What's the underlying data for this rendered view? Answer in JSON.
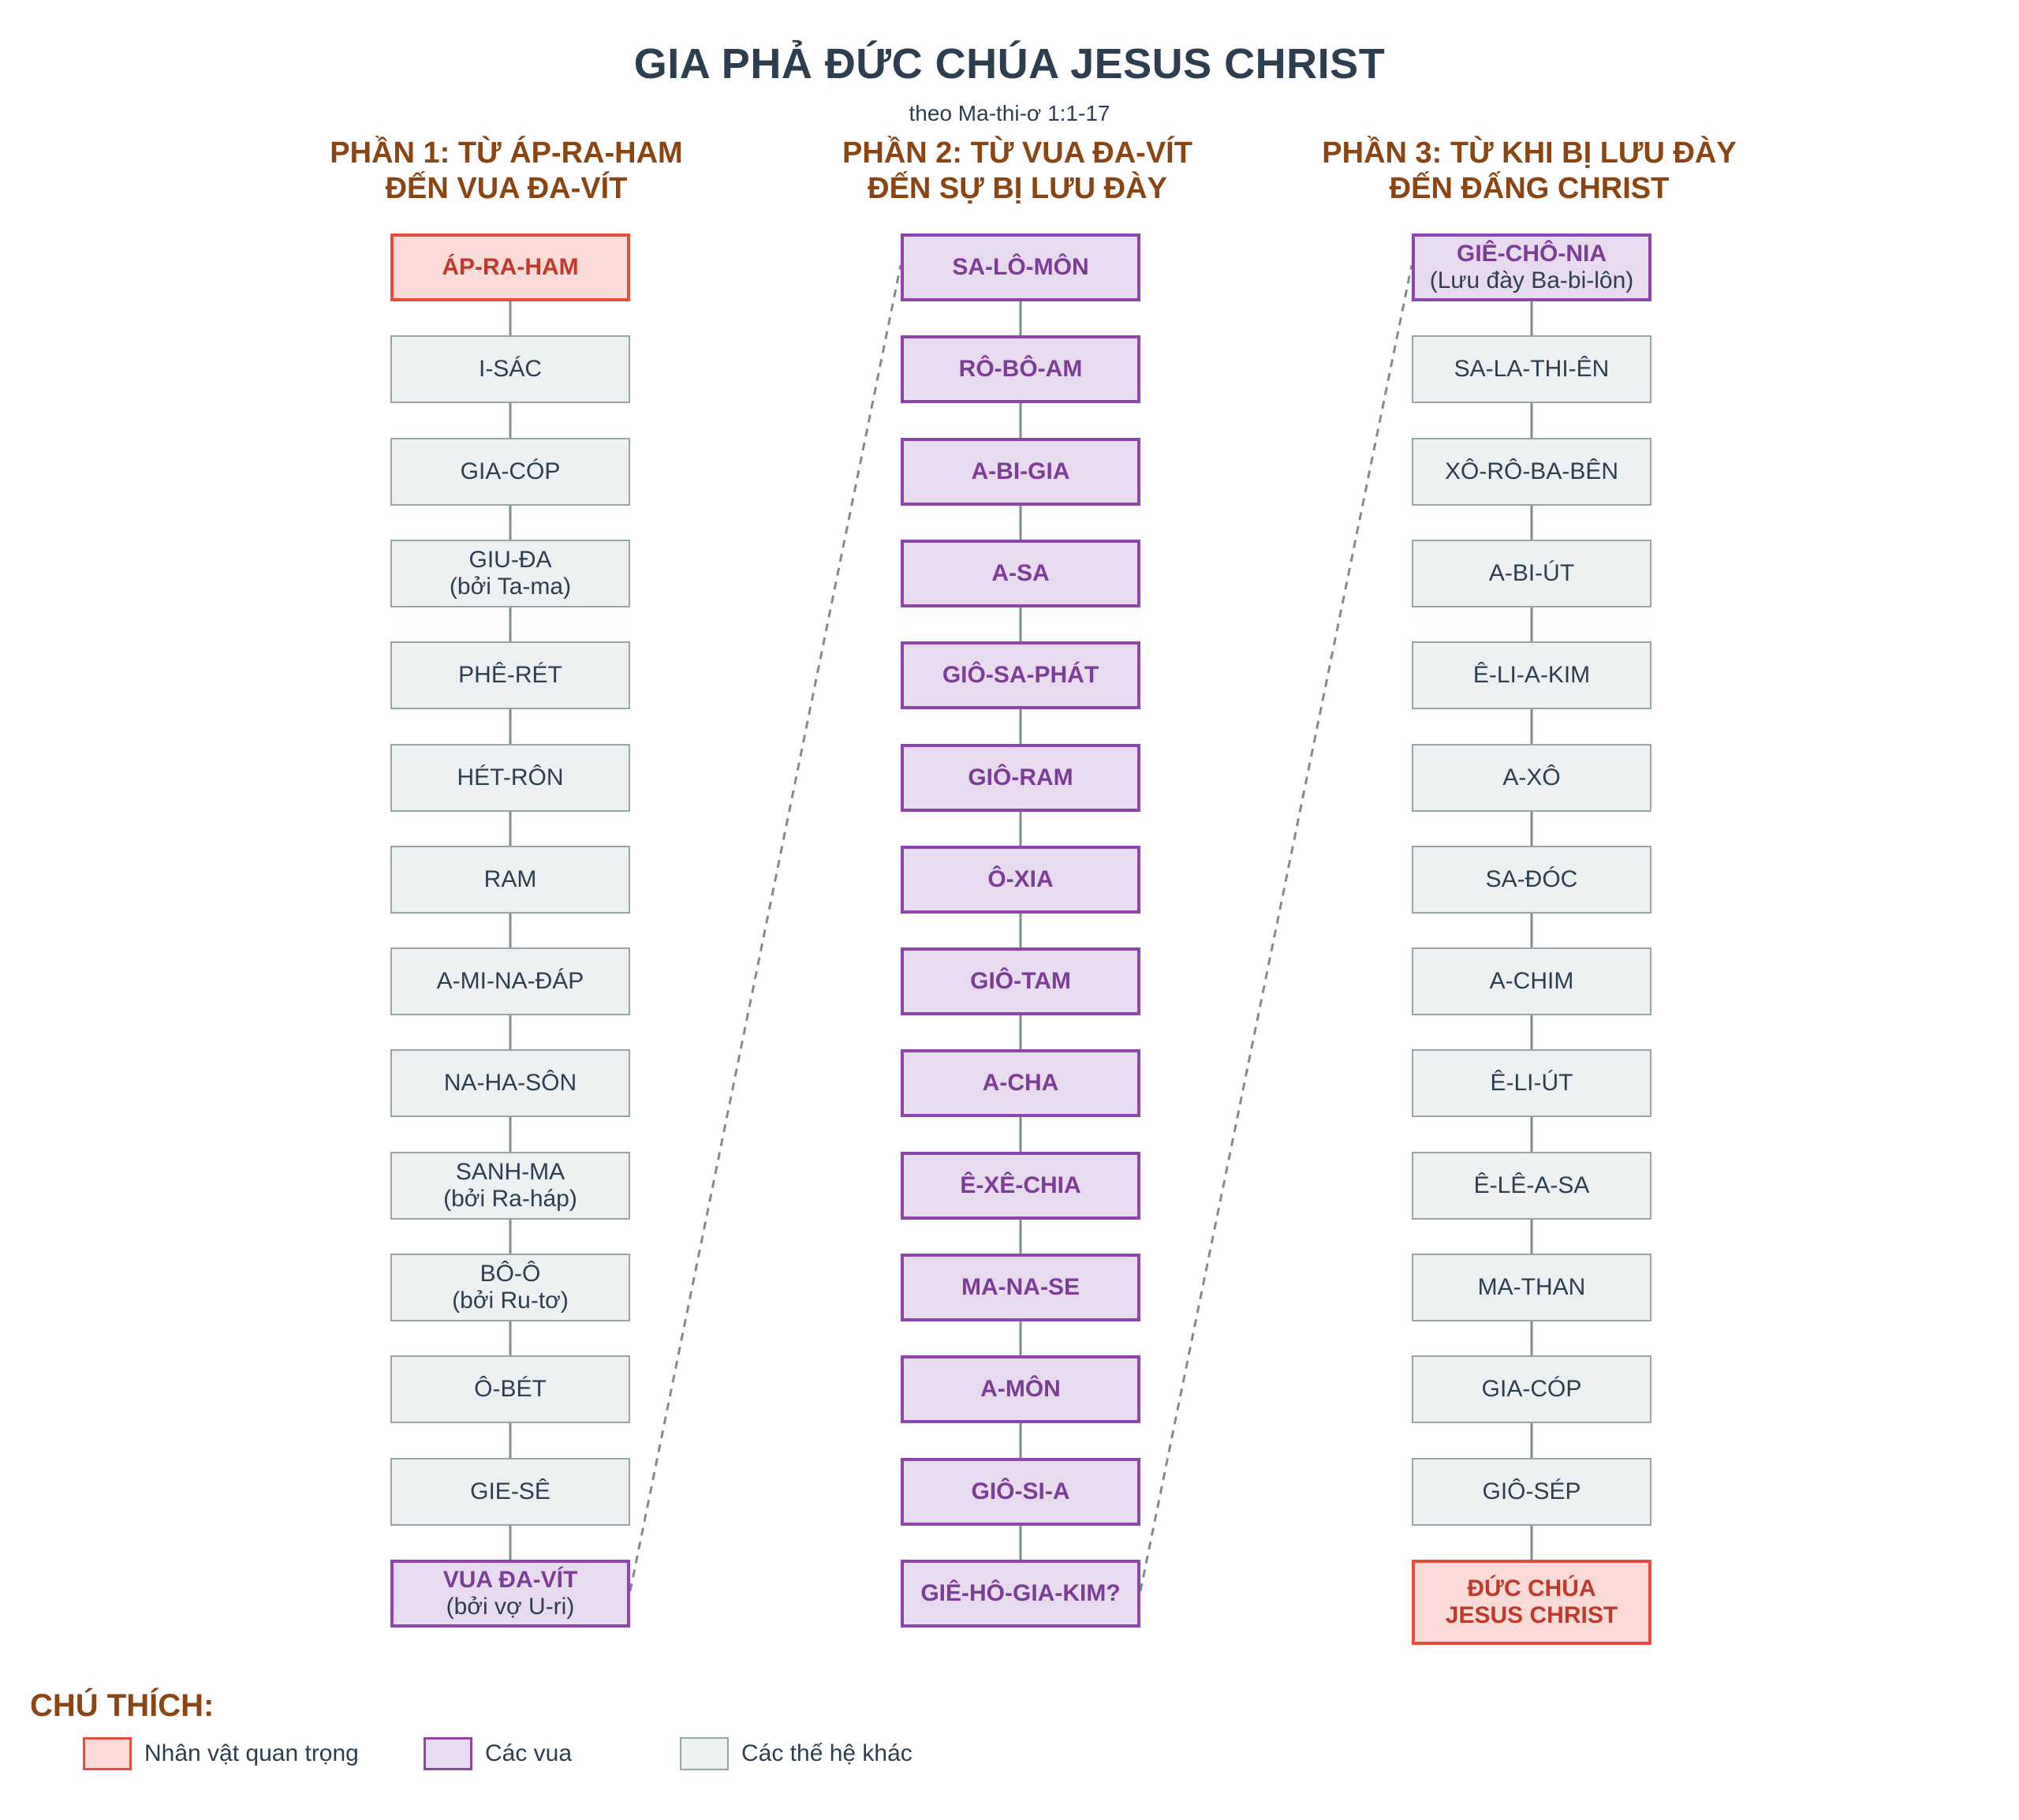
{
  "header": {
    "title": "GIA PHẢ ĐỨC CHÚA JESUS CHRIST",
    "subtitle": "theo Ma-thi-ơ 1:1-17"
  },
  "colors": {
    "important_fill": "#fadbd8",
    "important_border": "#e74c3c",
    "king_fill": "#e8daef",
    "king_border": "#8e44ad",
    "other_fill": "#ecf0f1",
    "other_border": "#95a5a6",
    "section_title": "#8b4513",
    "title": "#2c3e50"
  },
  "sections": [
    {
      "title_line1": "PHẦN 1: TỪ ÁP-RA-HAM",
      "title_line2": "ĐẾN VUA ĐA-VÍT",
      "nodes": [
        {
          "name": "ÁP-RA-HAM",
          "note": "",
          "type": "important"
        },
        {
          "name": "I-SÁC",
          "note": "",
          "type": "other"
        },
        {
          "name": "GIA-CÓP",
          "note": "",
          "type": "other"
        },
        {
          "name": "GIU-ĐA",
          "note": "(bởi Ta-ma)",
          "type": "other"
        },
        {
          "name": "PHÊ-RÉT",
          "note": "",
          "type": "other"
        },
        {
          "name": "HÉT-RÔN",
          "note": "",
          "type": "other"
        },
        {
          "name": "RAM",
          "note": "",
          "type": "other"
        },
        {
          "name": "A-MI-NA-ĐÁP",
          "note": "",
          "type": "other"
        },
        {
          "name": "NA-HA-SÔN",
          "note": "",
          "type": "other"
        },
        {
          "name": "SANH-MA",
          "note": "(bởi Ra-háp)",
          "type": "other"
        },
        {
          "name": "BÔ-Ô",
          "note": "(bởi Ru-tơ)",
          "type": "other"
        },
        {
          "name": "Ô-BÉT",
          "note": "",
          "type": "other"
        },
        {
          "name": "GIE-SÊ",
          "note": "",
          "type": "other"
        },
        {
          "name": "VUA ĐA-VÍT",
          "note": "(bởi vợ U-ri)",
          "type": "king"
        }
      ]
    },
    {
      "title_line1": "PHẦN 2: TỪ VUA ĐA-VÍT",
      "title_line2": "ĐẾN SỰ BỊ LƯU ĐÀY",
      "nodes": [
        {
          "name": "SA-LÔ-MÔN",
          "note": "",
          "type": "king"
        },
        {
          "name": "RÔ-BÔ-AM",
          "note": "",
          "type": "king"
        },
        {
          "name": "A-BI-GIA",
          "note": "",
          "type": "king"
        },
        {
          "name": "A-SA",
          "note": "",
          "type": "king"
        },
        {
          "name": "GIÔ-SA-PHÁT",
          "note": "",
          "type": "king"
        },
        {
          "name": "GIÔ-RAM",
          "note": "",
          "type": "king"
        },
        {
          "name": "Ô-XIA",
          "note": "",
          "type": "king"
        },
        {
          "name": "GIÔ-TAM",
          "note": "",
          "type": "king"
        },
        {
          "name": "A-CHA",
          "note": "",
          "type": "king"
        },
        {
          "name": "Ê-XÊ-CHIA",
          "note": "",
          "type": "king"
        },
        {
          "name": "MA-NA-SE",
          "note": "",
          "type": "king"
        },
        {
          "name": "A-MÔN",
          "note": "",
          "type": "king"
        },
        {
          "name": "GIÔ-SI-A",
          "note": "",
          "type": "king"
        },
        {
          "name": "GIÊ-HÔ-GIA-KIM?",
          "note": "",
          "type": "king"
        }
      ]
    },
    {
      "title_line1": "PHẦN 3: TỪ KHI BỊ LƯU ĐÀY",
      "title_line2": "ĐẾN ĐẤNG CHRIST",
      "nodes": [
        {
          "name": "GIÊ-CHÔ-NIA",
          "note": "(Lưu đày Ba-bi-lôn)",
          "type": "king"
        },
        {
          "name": "SA-LA-THI-ÊN",
          "note": "",
          "type": "other"
        },
        {
          "name": "XÔ-RÔ-BA-BÊN",
          "note": "",
          "type": "other"
        },
        {
          "name": "A-BI-ÚT",
          "note": "",
          "type": "other"
        },
        {
          "name": "Ê-LI-A-KIM",
          "note": "",
          "type": "other"
        },
        {
          "name": "A-XÔ",
          "note": "",
          "type": "other"
        },
        {
          "name": "SA-ĐÓC",
          "note": "",
          "type": "other"
        },
        {
          "name": "A-CHIM",
          "note": "",
          "type": "other"
        },
        {
          "name": "Ê-LI-ÚT",
          "note": "",
          "type": "other"
        },
        {
          "name": "Ê-LÊ-A-SA",
          "note": "",
          "type": "other"
        },
        {
          "name": "MA-THAN",
          "note": "",
          "type": "other"
        },
        {
          "name": "GIA-CÓP",
          "note": "",
          "type": "other"
        },
        {
          "name": "GIÔ-SÉP",
          "note": "",
          "type": "other"
        },
        {
          "name": "ĐỨC CHÚA",
          "note": "JESUS CHRIST",
          "type": "important"
        }
      ]
    }
  ],
  "legend": {
    "title": "CHÚ THÍCH:",
    "items": [
      {
        "label": "Nhân vật quan trọng",
        "type": "important"
      },
      {
        "label": "Các vua",
        "type": "king"
      },
      {
        "label": "Các thế hệ khác",
        "type": "other"
      }
    ]
  }
}
